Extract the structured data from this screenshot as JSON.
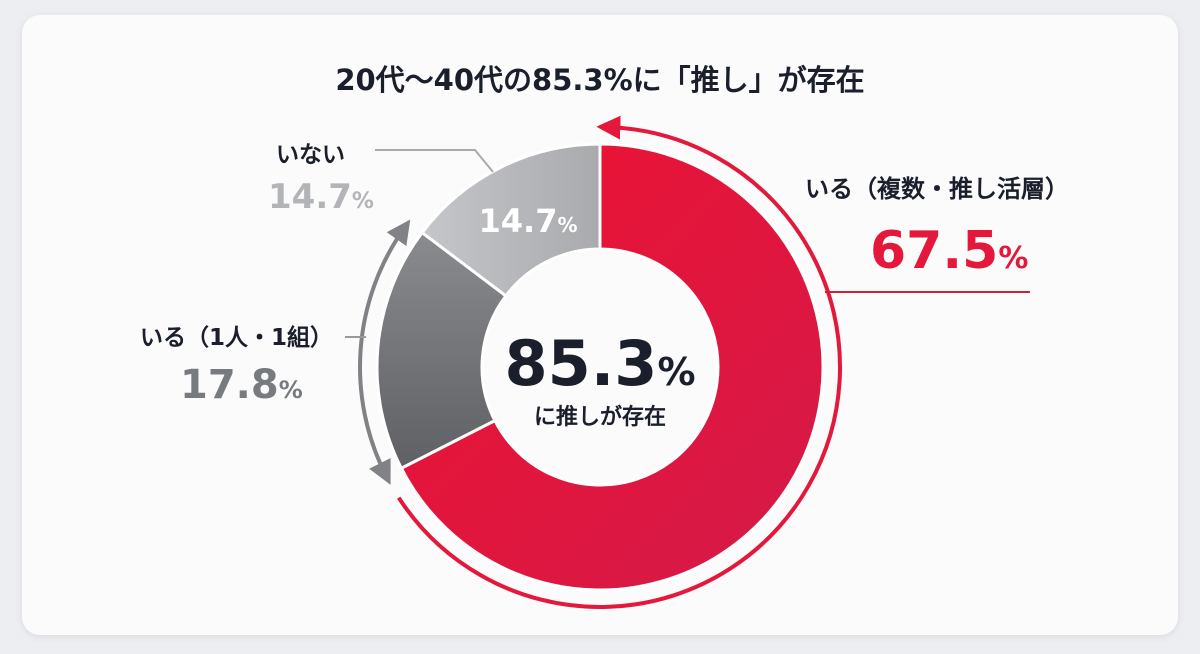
{
  "chart_data": {
    "type": "pie",
    "variant": "donut",
    "title": "20代〜40代の85.3%に「推し」が存在",
    "center": {
      "value": "85.3",
      "unit": "%",
      "caption": "に推しが存在"
    },
    "slices": [
      {
        "label": "いる（複数・推し活層）",
        "value": 67.5,
        "color": "#e3183a"
      },
      {
        "label": "いる（1人・1組）",
        "value": 17.8,
        "color": "#808285"
      },
      {
        "label": "いない",
        "value": 14.7,
        "color": "#b9babd"
      }
    ],
    "unit": "%",
    "grouping_arrows": [
      "いる（複数・推し活層）+ いる（1人・1組）"
    ],
    "colors": {
      "accent": "#e3183a",
      "text": "#1a1f2b"
    }
  }
}
